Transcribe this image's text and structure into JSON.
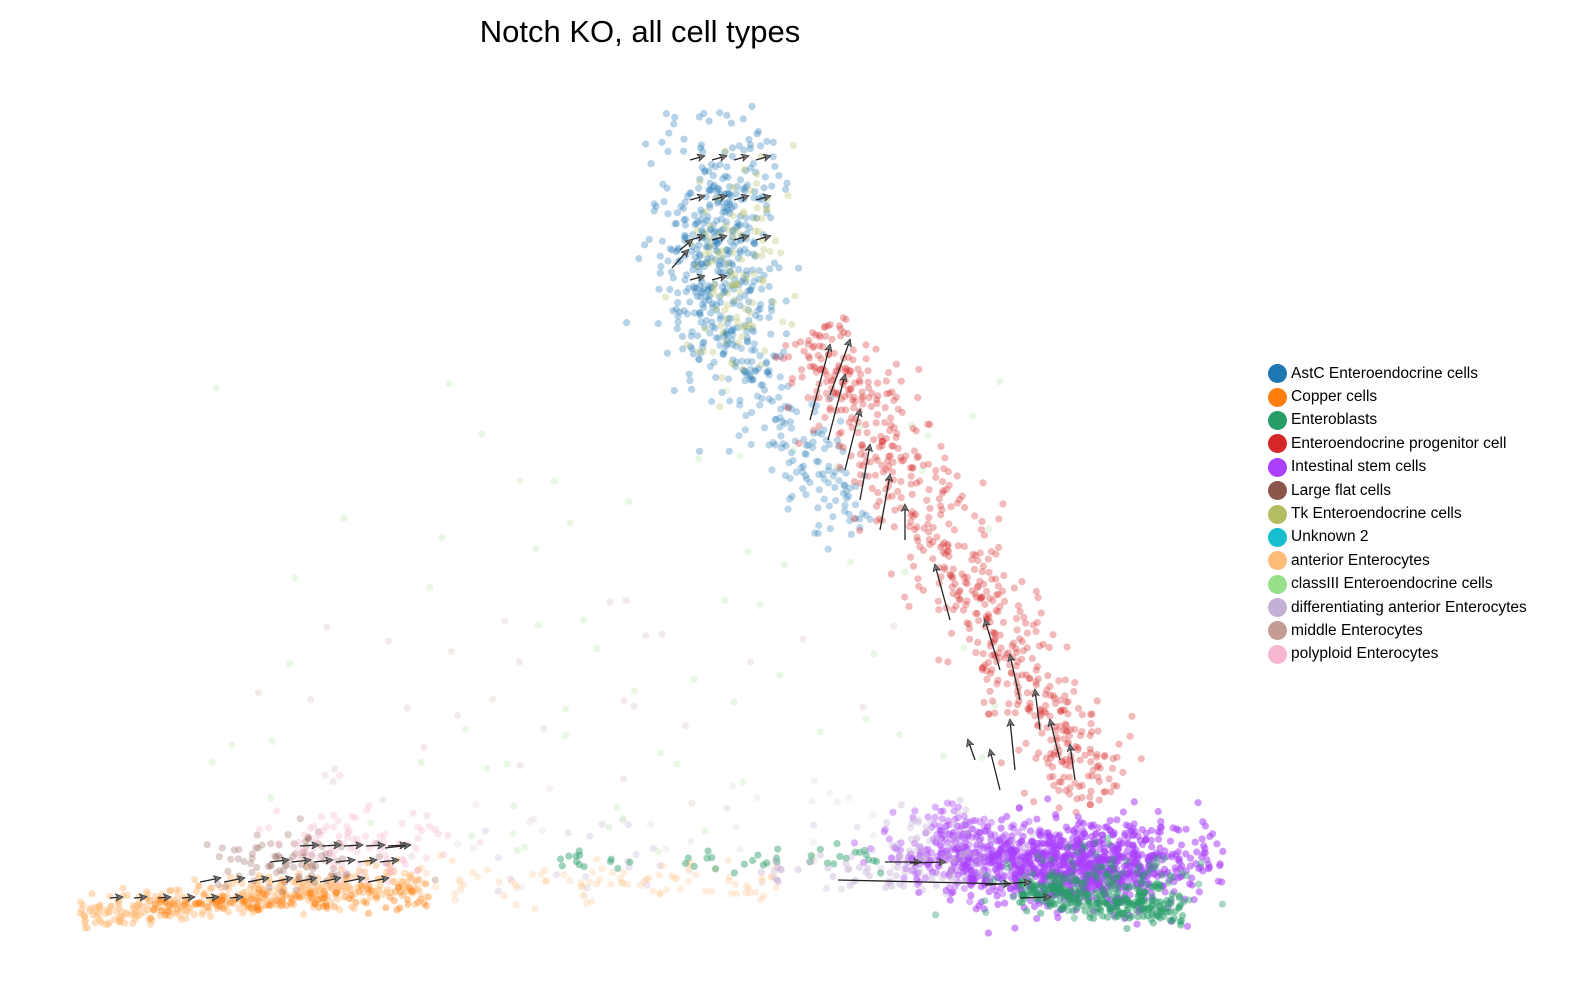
{
  "chart_data": {
    "type": "scatter",
    "title": "Notch KO, all cell types",
    "xlabel": "",
    "ylabel": "",
    "grid": false,
    "axes_visible": false,
    "legend_position": "right",
    "overlay": "velocity-arrows",
    "legend": [
      {
        "name": "AstC Enteroendocrine cells",
        "color": "#1f77b4"
      },
      {
        "name": "Copper cells",
        "color": "#ff7f0e"
      },
      {
        "name": "Enteroblasts",
        "color": "#279e68"
      },
      {
        "name": "Enteroendocrine progenitor cell",
        "color": "#d62728"
      },
      {
        "name": "Intestinal stem cells",
        "color": "#aa40fc"
      },
      {
        "name": "Large flat cells",
        "color": "#8c564b"
      },
      {
        "name": "Tk Enteroendocrine cells",
        "color": "#b5bd61"
      },
      {
        "name": "Unknown 2",
        "color": "#17becf"
      },
      {
        "name": "anterior Enterocytes",
        "color": "#ffbb78"
      },
      {
        "name": "classIII Enteroendocrine cells",
        "color": "#98df8a"
      },
      {
        "name": "differentiating anterior Enterocytes",
        "color": "#c5b0d5"
      },
      {
        "name": "middle Enterocytes",
        "color": "#c49c94"
      },
      {
        "name": "polyploid Enterocytes",
        "color": "#f7b6d2"
      }
    ]
  }
}
